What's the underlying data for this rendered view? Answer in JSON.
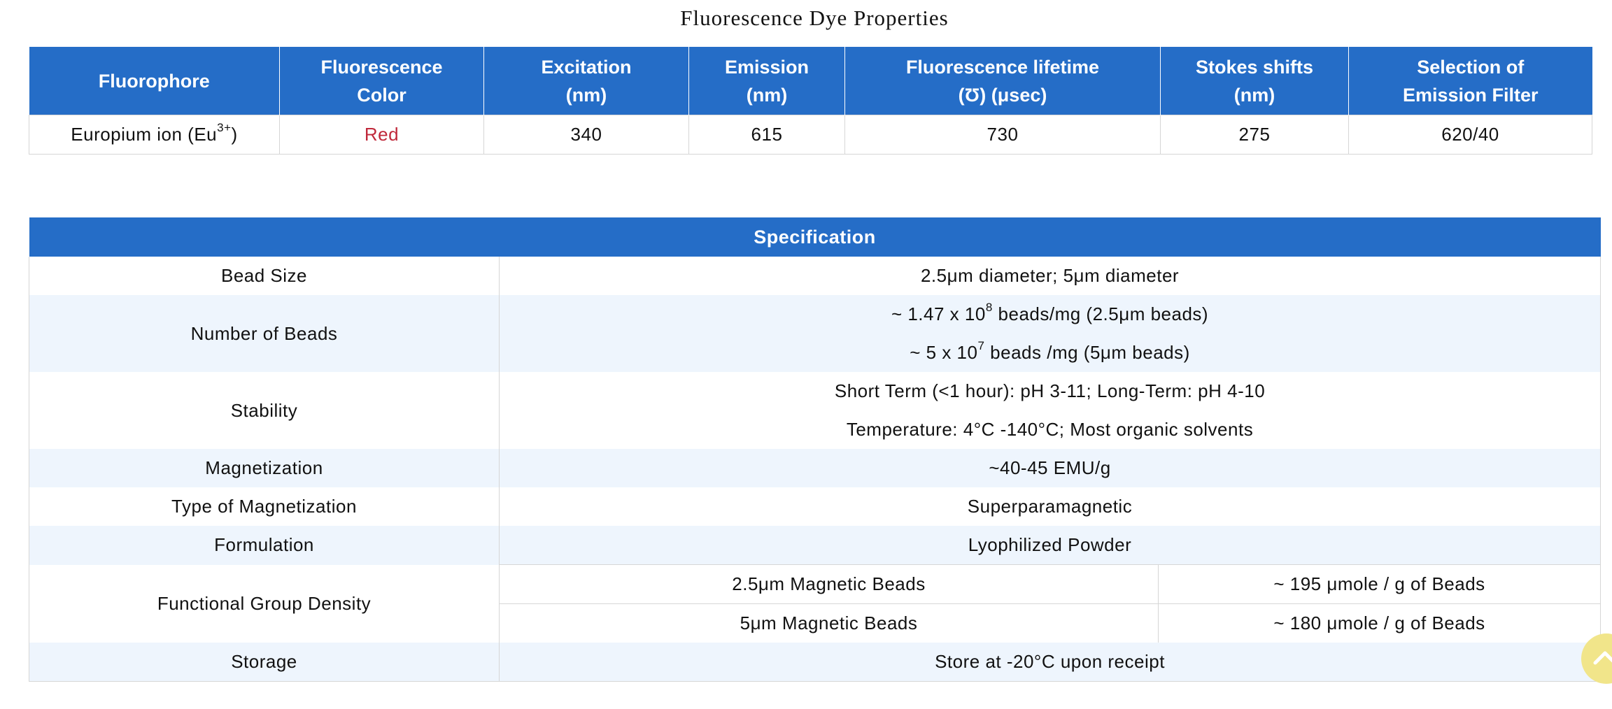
{
  "dye_section": {
    "title": "Fluorescence Dye Properties",
    "headers": {
      "fluorophore": [
        "Fluorophore"
      ],
      "color": [
        "Fluorescence",
        "Color"
      ],
      "excitation": [
        "Excitation",
        "(nm)"
      ],
      "emission": [
        "Emission",
        "(nm)"
      ],
      "lifetime": [
        "Fluorescence lifetime",
        "(Ʊ) (μsec)"
      ],
      "stokes": [
        "Stokes shifts",
        "(nm)"
      ],
      "filter": [
        "Selection of",
        "Emission Filter"
      ]
    },
    "row": {
      "fluorophore_prefix": "Europium ion (Eu",
      "fluorophore_sup": "3+",
      "fluorophore_suffix": ")",
      "color": "Red",
      "excitation": "340",
      "emission": "615",
      "lifetime": "730",
      "stokes": "275",
      "filter": "620/40"
    }
  },
  "spec_section": {
    "header": "Specification",
    "bead_size": {
      "label": "Bead Size",
      "value": "2.5μm diameter; 5μm diameter"
    },
    "number_of_beads": {
      "label": "Number of Beads",
      "line1_pre": "~ 1.47 x 10",
      "line1_sup": "8",
      "line1_post": " beads/mg (2.5μm beads)",
      "line2_pre": "~ 5 x 10",
      "line2_sup": "7",
      "line2_post": " beads /mg (5μm beads)"
    },
    "stability": {
      "label": "Stability",
      "line1": "Short Term (<1 hour): pH 3-11; Long-Term: pH 4-10",
      "line2": "Temperature: 4°C -140°C; Most organic solvents"
    },
    "magnetization": {
      "label": "Magnetization",
      "value": "~40-45 EMU/g"
    },
    "type_of_magnetization": {
      "label": "Type of Magnetization",
      "value": "Superparamagnetic"
    },
    "formulation": {
      "label": "Formulation",
      "value": "Lyophilized Powder"
    },
    "functional_group_density": {
      "label": "Functional Group Density",
      "rows": [
        {
          "bead": "2.5μm Magnetic Beads",
          "value": "~ 195 μmole / g of Beads"
        },
        {
          "bead": "5μm Magnetic Beads",
          "value": "~ 180 μmole / g of Beads"
        }
      ]
    },
    "storage": {
      "label": "Storage",
      "value": "Store at -20°C upon receipt"
    }
  },
  "scroll_top": {
    "icon": "chevron-up-icon",
    "color": "#f1e58a"
  },
  "colors": {
    "header_blue": "#256dc7",
    "alt_row": "#eef5fd",
    "red_text": "#c0293b"
  }
}
